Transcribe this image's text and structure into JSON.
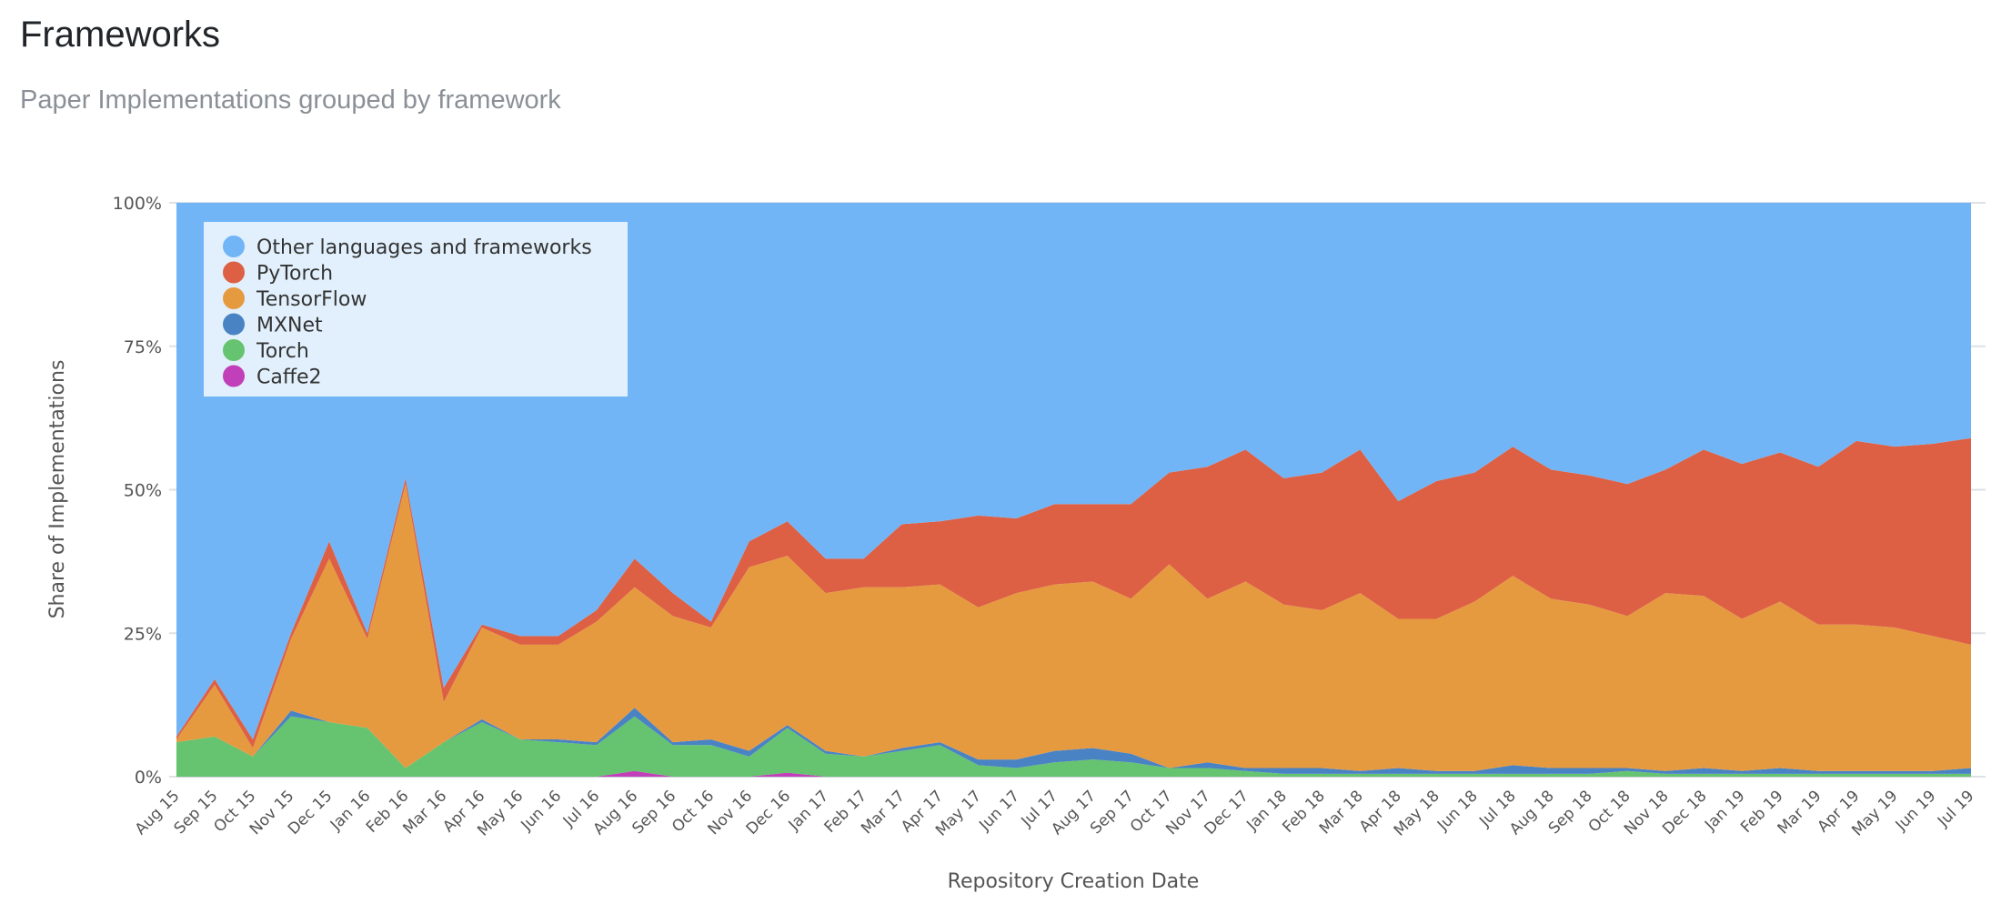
{
  "header": {
    "title": "Frameworks",
    "subtitle": "Paper Implementations grouped by framework"
  },
  "chart_data": {
    "type": "area",
    "stacked": "percent",
    "xlabel": "Repository Creation Date",
    "ylabel": "Share of Implementations",
    "ylim": [
      0,
      100
    ],
    "yticks": [
      "0%",
      "25%",
      "50%",
      "75%",
      "100%"
    ],
    "legend_position": "top-left",
    "categories": [
      "Aug 15",
      "Sep 15",
      "Oct 15",
      "Nov 15",
      "Dec 15",
      "Jan 16",
      "Feb 16",
      "Mar 16",
      "Apr 16",
      "May 16",
      "Jun 16",
      "Jul 16",
      "Aug 16",
      "Sep 16",
      "Oct 16",
      "Nov 16",
      "Dec 16",
      "Jan 17",
      "Feb 17",
      "Mar 17",
      "Apr 17",
      "May 17",
      "Jun 17",
      "Jul 17",
      "Aug 17",
      "Sep 17",
      "Oct 17",
      "Nov 17",
      "Dec 17",
      "Jan 18",
      "Feb 18",
      "Mar 18",
      "Apr 18",
      "May 18",
      "Jun 18",
      "Jul 18",
      "Aug 18",
      "Sep 18",
      "Oct 18",
      "Nov 18",
      "Dec 18",
      "Jan 19",
      "Feb 19",
      "Mar 19",
      "Apr 19",
      "May 19",
      "Jun 19",
      "Jul 19"
    ],
    "series": [
      {
        "name": "Caffe2",
        "color": "#c13fb8",
        "values": [
          0,
          0,
          0,
          0,
          0,
          0,
          0,
          0,
          0,
          0,
          0,
          0,
          1,
          0,
          0,
          0,
          0.7,
          0,
          0,
          0,
          0,
          0,
          0,
          0,
          0,
          0,
          0,
          0,
          0,
          0,
          0,
          0,
          0,
          0,
          0,
          0,
          0,
          0,
          0,
          0,
          0,
          0,
          0,
          0,
          0,
          0,
          0,
          0
        ]
      },
      {
        "name": "Torch",
        "color": "#66c36f",
        "values": [
          6,
          7,
          3.5,
          10.5,
          9.5,
          8.5,
          1.5,
          6,
          9.5,
          6.5,
          6,
          5.5,
          9.5,
          5.5,
          5.5,
          3.5,
          7.8,
          4,
          3.5,
          4.5,
          5.5,
          2,
          1.5,
          2.5,
          3,
          2.5,
          1.5,
          1.5,
          1,
          0.5,
          0.5,
          0.5,
          0.5,
          0.5,
          0.5,
          0.5,
          0.5,
          0.5,
          1,
          0.5,
          0.5,
          0.5,
          0.5,
          0.5,
          0.5,
          0.5,
          0.5,
          0.5
        ]
      },
      {
        "name": "MXNet",
        "color": "#4a83c4",
        "values": [
          0,
          0,
          0,
          1,
          0,
          0,
          0,
          0,
          0.5,
          0,
          0.5,
          0.5,
          1.5,
          0.5,
          1,
          1,
          0.5,
          0.5,
          0,
          0.5,
          0.5,
          1,
          1.5,
          2,
          2,
          1.5,
          0,
          1,
          0.5,
          1,
          1,
          0.5,
          1,
          0.5,
          0.5,
          1.5,
          1,
          1,
          0.5,
          0.5,
          1,
          0.5,
          1,
          0.5,
          0.5,
          0.5,
          0.5,
          1
        ]
      },
      {
        "name": "TensorFlow",
        "color": "#e69a40",
        "values": [
          0.5,
          9,
          1.5,
          12.5,
          28.5,
          15.5,
          49.5,
          7,
          16,
          16.5,
          16.5,
          21,
          21,
          22,
          19.5,
          32,
          29.5,
          27.5,
          29.5,
          28,
          27.5,
          26.5,
          29,
          29,
          29,
          27,
          35.5,
          28.5,
          32.5,
          28.5,
          27.5,
          31,
          26,
          26.5,
          29.5,
          33,
          29.5,
          28.5,
          26.5,
          31,
          30,
          26.5,
          29,
          25.5,
          25.5,
          25,
          23.5,
          21.5
        ]
      },
      {
        "name": "PyTorch",
        "color": "#dd6044",
        "values": [
          0.5,
          1,
          1.5,
          1,
          3,
          1,
          1,
          2.5,
          0.5,
          1.5,
          1.5,
          2,
          5,
          4,
          1,
          4.5,
          6,
          6,
          5,
          11,
          11,
          16,
          13,
          14,
          13.5,
          16.5,
          16,
          23,
          23,
          22,
          24,
          25,
          20.5,
          24,
          22.5,
          22.5,
          22.5,
          22.5,
          23,
          21.5,
          25.5,
          27,
          26,
          27.5,
          32,
          31.5,
          33.5,
          36
        ]
      },
      {
        "name": "Other languages and frameworks",
        "color": "#71b5f7",
        "values": [
          93,
          83,
          93.5,
          75,
          59,
          75,
          48,
          84.5,
          73.5,
          75.5,
          75.5,
          71,
          62,
          68,
          73,
          59,
          55.5,
          62,
          62,
          56,
          55.5,
          54.5,
          55,
          52.5,
          52.5,
          52.5,
          47,
          46,
          43,
          48,
          47,
          43,
          52,
          48.5,
          47,
          42.5,
          46.5,
          47.5,
          49,
          46.5,
          43,
          45.5,
          43.5,
          46,
          41.5,
          42.5,
          42,
          41
        ]
      }
    ],
    "legend_order": [
      "Other languages and frameworks",
      "PyTorch",
      "TensorFlow",
      "MXNet",
      "Torch",
      "Caffe2"
    ]
  }
}
